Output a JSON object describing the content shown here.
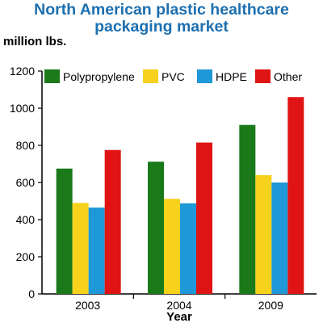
{
  "chart_data": {
    "type": "bar",
    "title": "North American plastic healthcare packaging market",
    "ylabel": "million lbs.",
    "xlabel": "Year",
    "categories": [
      "2003",
      "2004",
      "2009"
    ],
    "series": [
      {
        "name": "Polypropylene",
        "color": "#1a7a1a",
        "values": [
          675,
          712,
          910
        ]
      },
      {
        "name": "PVC",
        "color": "#f7d21c",
        "values": [
          490,
          512,
          640
        ]
      },
      {
        "name": "HDPE",
        "color": "#1e98d6",
        "values": [
          465,
          488,
          600
        ]
      },
      {
        "name": "Other",
        "color": "#e01414",
        "values": [
          775,
          815,
          1060
        ]
      }
    ],
    "ylim": [
      0,
      1200
    ],
    "yticks": [
      0,
      200,
      400,
      600,
      800,
      1000,
      1200
    ],
    "legend_position": "top",
    "grid": false
  }
}
